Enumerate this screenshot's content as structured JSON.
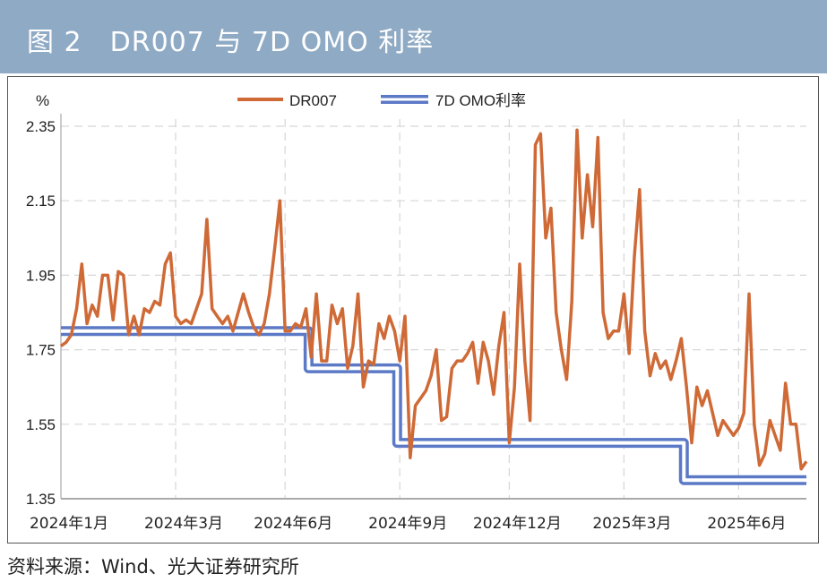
{
  "header": {
    "title": "图 2　DR007 与 7D OMO 利率"
  },
  "source": "资料来源：Wind、光大证券研究所",
  "colors": {
    "title_bar": "#8faac4",
    "dr007": "#cf6a37",
    "omo": "#5b79c6"
  },
  "chart_data": {
    "type": "line",
    "title": "",
    "ylabel": "%",
    "xlabel": "",
    "ylim": [
      1.35,
      2.35
    ],
    "yticks": [
      "2.35",
      "2.15",
      "1.95",
      "1.75",
      "1.55",
      "1.35"
    ],
    "grid": "dashed",
    "legend": "top-center",
    "x_ticks": [
      {
        "label": "2024年1月",
        "index": 0
      },
      {
        "label": "2024年3月",
        "index": 22
      },
      {
        "label": "2024年6月",
        "index": 43
      },
      {
        "label": "2024年9月",
        "index": 65
      },
      {
        "label": "2024年12月",
        "index": 86
      },
      {
        "label": "2025年3月",
        "index": 108
      },
      {
        "label": "2025年6月",
        "index": 130
      }
    ],
    "series": [
      {
        "name": "DR007",
        "values": [
          1.76,
          1.77,
          1.79,
          1.86,
          1.98,
          1.82,
          1.87,
          1.84,
          1.95,
          1.95,
          1.83,
          1.96,
          1.95,
          1.79,
          1.84,
          1.79,
          1.86,
          1.85,
          1.88,
          1.87,
          1.98,
          2.01,
          1.84,
          1.82,
          1.83,
          1.82,
          1.86,
          1.9,
          2.1,
          1.86,
          1.84,
          1.82,
          1.84,
          1.8,
          1.85,
          1.9,
          1.85,
          1.81,
          1.79,
          1.82,
          1.9,
          2.02,
          2.15,
          1.8,
          1.8,
          1.82,
          1.81,
          1.86,
          1.73,
          1.9,
          1.72,
          1.72,
          1.87,
          1.82,
          1.86,
          1.7,
          1.76,
          1.9,
          1.65,
          1.72,
          1.71,
          1.82,
          1.78,
          1.84,
          1.8,
          1.72,
          1.84,
          1.46,
          1.6,
          1.62,
          1.64,
          1.68,
          1.75,
          1.56,
          1.57,
          1.7,
          1.72,
          1.72,
          1.74,
          1.77,
          1.66,
          1.77,
          1.72,
          1.63,
          1.76,
          1.85,
          1.5,
          1.65,
          1.98,
          1.72,
          1.56,
          2.3,
          2.33,
          2.05,
          2.13,
          1.85,
          1.75,
          1.67,
          1.88,
          2.34,
          2.05,
          2.22,
          2.08,
          2.32,
          1.85,
          1.78,
          1.8,
          1.8,
          1.9,
          1.74,
          2.0,
          2.18,
          1.8,
          1.68,
          1.74,
          1.7,
          1.72,
          1.67,
          1.72,
          1.78,
          1.65,
          1.5,
          1.65,
          1.6,
          1.64,
          1.58,
          1.52,
          1.56,
          1.54,
          1.52,
          1.54,
          1.58,
          1.9,
          1.55,
          1.44,
          1.47,
          1.56,
          1.52,
          1.48,
          1.66,
          1.55,
          1.55,
          1.43,
          1.45
        ]
      },
      {
        "name": "7D OMO利率",
        "values": [
          1.8,
          1.8,
          1.8,
          1.8,
          1.8,
          1.8,
          1.8,
          1.8,
          1.8,
          1.8,
          1.8,
          1.8,
          1.8,
          1.8,
          1.8,
          1.8,
          1.8,
          1.8,
          1.8,
          1.8,
          1.8,
          1.8,
          1.8,
          1.8,
          1.8,
          1.8,
          1.8,
          1.8,
          1.8,
          1.8,
          1.8,
          1.8,
          1.8,
          1.8,
          1.8,
          1.8,
          1.8,
          1.8,
          1.8,
          1.8,
          1.8,
          1.8,
          1.8,
          1.8,
          1.8,
          1.8,
          1.8,
          1.8,
          1.7,
          1.7,
          1.7,
          1.7,
          1.7,
          1.7,
          1.7,
          1.7,
          1.7,
          1.7,
          1.7,
          1.7,
          1.7,
          1.7,
          1.7,
          1.7,
          1.7,
          1.5,
          1.5,
          1.5,
          1.5,
          1.5,
          1.5,
          1.5,
          1.5,
          1.5,
          1.5,
          1.5,
          1.5,
          1.5,
          1.5,
          1.5,
          1.5,
          1.5,
          1.5,
          1.5,
          1.5,
          1.5,
          1.5,
          1.5,
          1.5,
          1.5,
          1.5,
          1.5,
          1.5,
          1.5,
          1.5,
          1.5,
          1.5,
          1.5,
          1.5,
          1.5,
          1.5,
          1.5,
          1.5,
          1.5,
          1.5,
          1.5,
          1.5,
          1.5,
          1.5,
          1.5,
          1.5,
          1.5,
          1.5,
          1.5,
          1.5,
          1.5,
          1.5,
          1.5,
          1.5,
          1.5,
          1.4,
          1.4,
          1.4,
          1.4,
          1.4,
          1.4,
          1.4,
          1.4,
          1.4,
          1.4,
          1.4,
          1.4,
          1.4,
          1.4,
          1.4,
          1.4,
          1.4,
          1.4,
          1.4,
          1.4,
          1.4,
          1.4,
          1.4,
          1.4
        ]
      }
    ]
  }
}
